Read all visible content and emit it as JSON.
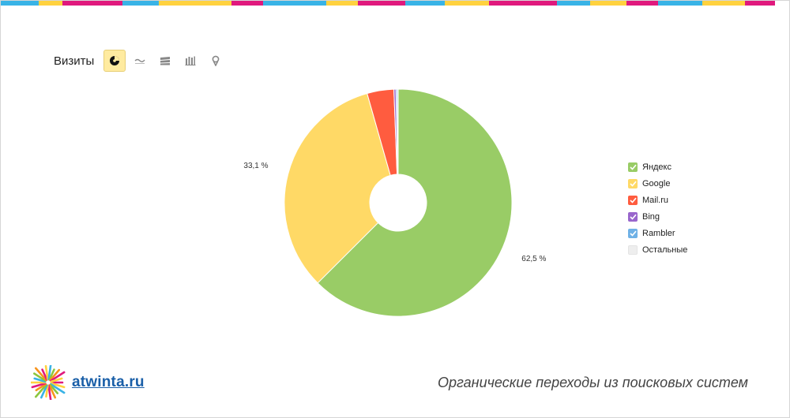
{
  "stripe_colors": [
    "#39b3e6",
    "#ffd23f",
    "#e0197d",
    "#39b3e6",
    "#ffd23f",
    "#e0197d",
    "#39b3e6",
    "#ffd23f",
    "#e0197d",
    "#39b3e6",
    "#ffd23f",
    "#e0197d",
    "#39b3e6",
    "#ffd23f",
    "#e0197d",
    "#39b3e6",
    "#ffd23f",
    "#e0197d"
  ],
  "toolbar": {
    "title": "Визиты",
    "buttons": [
      {
        "icon": "pie-chart-icon",
        "active": true
      },
      {
        "icon": "line-chart-icon",
        "active": false
      },
      {
        "icon": "area-chart-icon",
        "active": false
      },
      {
        "icon": "bar-chart-icon",
        "active": false
      },
      {
        "icon": "map-pin-icon",
        "active": false
      }
    ]
  },
  "chart_data": {
    "type": "pie",
    "donut": true,
    "slices": [
      {
        "name": "Яндекс",
        "value": 62.5,
        "color": "#99cc66",
        "label": "62,5 %"
      },
      {
        "name": "Google",
        "value": 33.1,
        "color": "#ffd966",
        "label": "33,1 %"
      },
      {
        "name": "Mail.ru",
        "value": 3.8,
        "color": "#ff5c3f",
        "label": ""
      },
      {
        "name": "Bing",
        "value": 0.3,
        "color": "#9966cc",
        "label": ""
      },
      {
        "name": "Rambler",
        "value": 0.2,
        "color": "#6fb1e6",
        "label": ""
      },
      {
        "name": "Остальные",
        "value": 0.1,
        "color": "#eeeeee",
        "label": ""
      }
    ],
    "legend_position": "right"
  },
  "legend": [
    {
      "label": "Яндекс",
      "color": "#99cc66",
      "checked": true
    },
    {
      "label": "Google",
      "color": "#ffd966",
      "checked": true
    },
    {
      "label": "Mail.ru",
      "color": "#ff5c3f",
      "checked": true
    },
    {
      "label": "Bing",
      "color": "#9966cc",
      "checked": true
    },
    {
      "label": "Rambler",
      "color": "#6fb1e6",
      "checked": true
    },
    {
      "label": "Остальные",
      "color": "#eeeeee",
      "checked": false
    }
  ],
  "footer": {
    "logo_text": "atwinta.ru",
    "caption": "Органические переходы из поисковых систем"
  }
}
